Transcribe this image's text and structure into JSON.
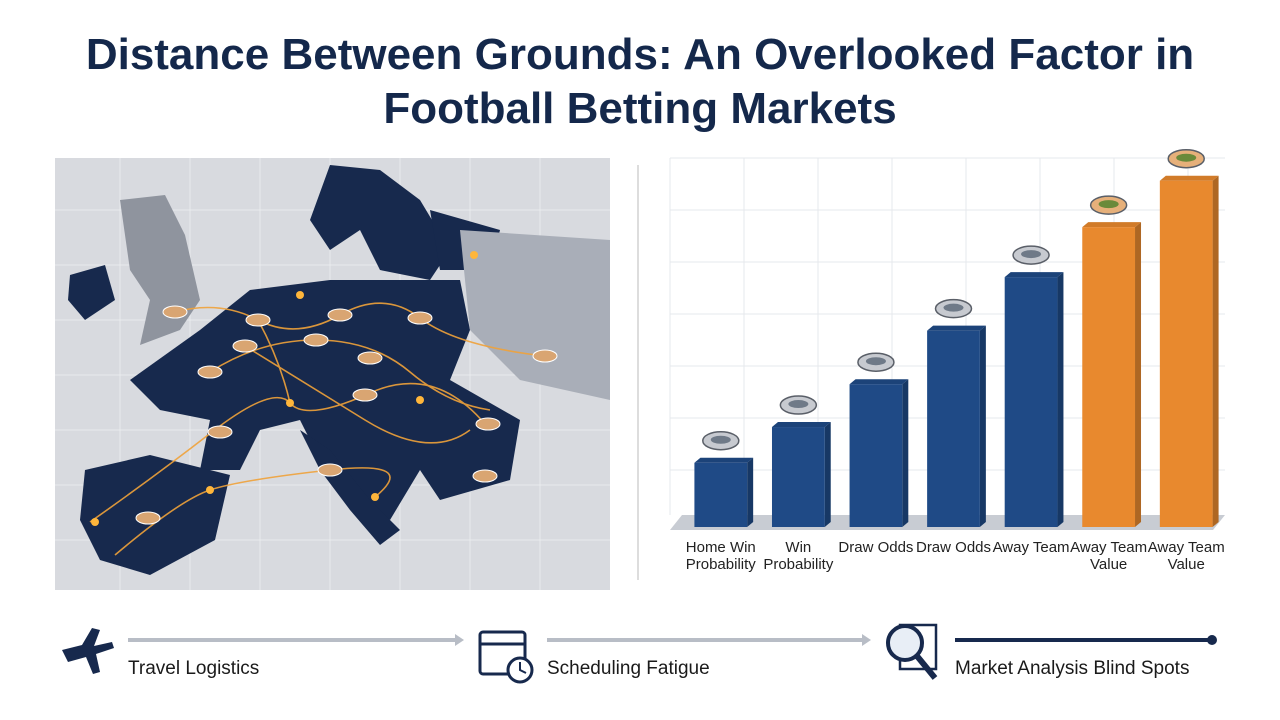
{
  "header": {
    "title": "Distance Between Grounds: An Overlooked Factor in Football Betting Markets"
  },
  "chart_data": {
    "type": "bar",
    "categories": [
      "Home Win Probability",
      "Win Probability",
      "Draw Odds",
      "Draw Odds",
      "Away Team",
      "Away Team Value",
      "Away Team Value"
    ],
    "values": [
      18,
      28,
      40,
      55,
      70,
      84,
      97
    ],
    "colors": [
      "#1f4a86",
      "#1f4a86",
      "#1f4a86",
      "#1f4a86",
      "#1f4a86",
      "#e8892e",
      "#e8892e"
    ],
    "ylim": [
      0,
      100
    ],
    "grid": true
  },
  "flow": {
    "steps": [
      "Travel Logistics",
      "Scheduling Fatigue",
      "Market Analysis Blind Spots"
    ]
  }
}
